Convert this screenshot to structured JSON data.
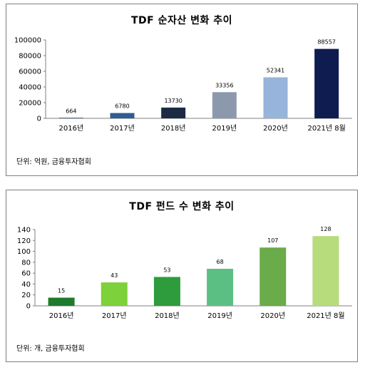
{
  "chart_data": [
    {
      "type": "bar",
      "title": "TDF 순자산 변화 추이",
      "categories": [
        "2016년",
        "2017년",
        "2018년",
        "2019년",
        "2020년",
        "2021년 8월"
      ],
      "values": [
        664,
        6780,
        13730,
        33356,
        52341,
        88557
      ],
      "value_labels": [
        "664",
        "6780",
        "13730",
        "33356",
        "52341",
        "88557"
      ],
      "colors": [
        "#1f3864",
        "#2e5c94",
        "#1c2a44",
        "#8c99ad",
        "#97b4da",
        "#0f1c50"
      ],
      "ylim": [
        0,
        100000
      ],
      "yticks": [
        0,
        20000,
        40000,
        60000,
        80000,
        100000
      ],
      "note": "단위: 억원, 금융투자협회",
      "xlabel": "",
      "ylabel": "",
      "grid": false,
      "legend": "none"
    },
    {
      "type": "bar",
      "title": "TDF 펀드 수 변화 추이",
      "categories": [
        "2016년",
        "2017년",
        "2018년",
        "2019년",
        "2020년",
        "2021년 8월"
      ],
      "values": [
        15,
        43,
        53,
        68,
        107,
        128
      ],
      "value_labels": [
        "15",
        "43",
        "53",
        "68",
        "107",
        "128"
      ],
      "colors": [
        "#1f7a2a",
        "#7dd13a",
        "#2e9c3c",
        "#5bbf84",
        "#6aab4a",
        "#b6dc7c"
      ],
      "ylim": [
        0,
        140
      ],
      "yticks": [
        0,
        20,
        40,
        60,
        80,
        100,
        120,
        140
      ],
      "note": "단위: 개, 금융투자협회",
      "xlabel": "",
      "ylabel": "",
      "grid": false,
      "legend": "none"
    }
  ]
}
